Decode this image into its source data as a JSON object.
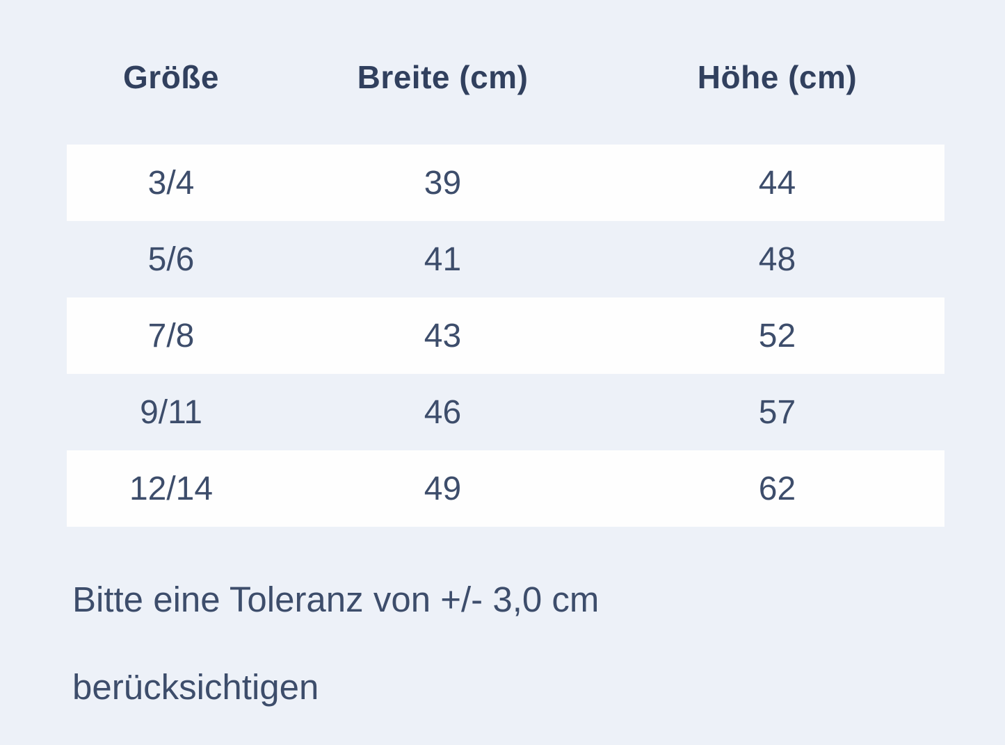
{
  "page": {
    "background_color": "#edf1f8",
    "band_color": "#fefefe",
    "text_color": "#3d4d6b",
    "header_color": "#31405e"
  },
  "size_table": {
    "headers": [
      "Größe",
      "Breite (cm)",
      "Höhe (cm)"
    ],
    "rows": [
      {
        "size": "3/4",
        "width": "39",
        "height": "44"
      },
      {
        "size": "5/6",
        "width": "41",
        "height": "48"
      },
      {
        "size": "7/8",
        "width": "43",
        "height": "52"
      },
      {
        "size": "9/11",
        "width": "46",
        "height": "57"
      },
      {
        "size": "12/14",
        "width": "49",
        "height": "62"
      }
    ]
  },
  "note": "Bitte eine Toleranz von +/- 3,0 cm berücksichtigen",
  "chart_data": {
    "type": "table",
    "title": "",
    "columns": [
      "Größe",
      "Breite (cm)",
      "Höhe (cm)"
    ],
    "rows": [
      [
        "3/4",
        "39",
        "44"
      ],
      [
        "5/6",
        "41",
        "48"
      ],
      [
        "7/8",
        "43",
        "52"
      ],
      [
        "9/11",
        "46",
        "57"
      ],
      [
        "12/14",
        "49",
        "62"
      ]
    ],
    "annotations": [
      "Bitte eine Toleranz von +/- 3,0 cm berücksichtigen"
    ],
    "layout": {
      "striped_rows": true,
      "stripe_pattern": "odd-rows-white",
      "alignment": "center"
    }
  }
}
